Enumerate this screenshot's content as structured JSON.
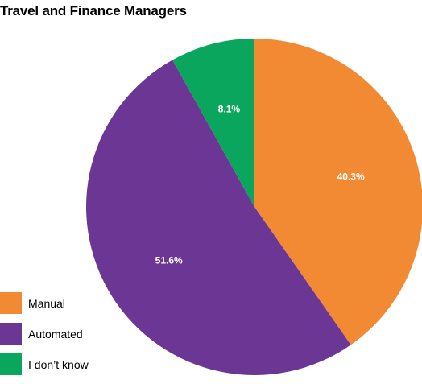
{
  "chart_data": {
    "type": "pie",
    "title": "Travel and Finance Managers",
    "slices": [
      {
        "label": "Manual",
        "value": 40.3,
        "display": "40.3%",
        "color": "#F18A32"
      },
      {
        "label": "Automated",
        "value": 51.6,
        "display": "51.6%",
        "color": "#6C3794"
      },
      {
        "label": "I don’t know",
        "value": 8.1,
        "display": "8.1%",
        "color": "#0AA65D"
      }
    ],
    "start_angle": "12 o'clock",
    "direction": "clockwise",
    "legend_position": "bottom-left"
  }
}
